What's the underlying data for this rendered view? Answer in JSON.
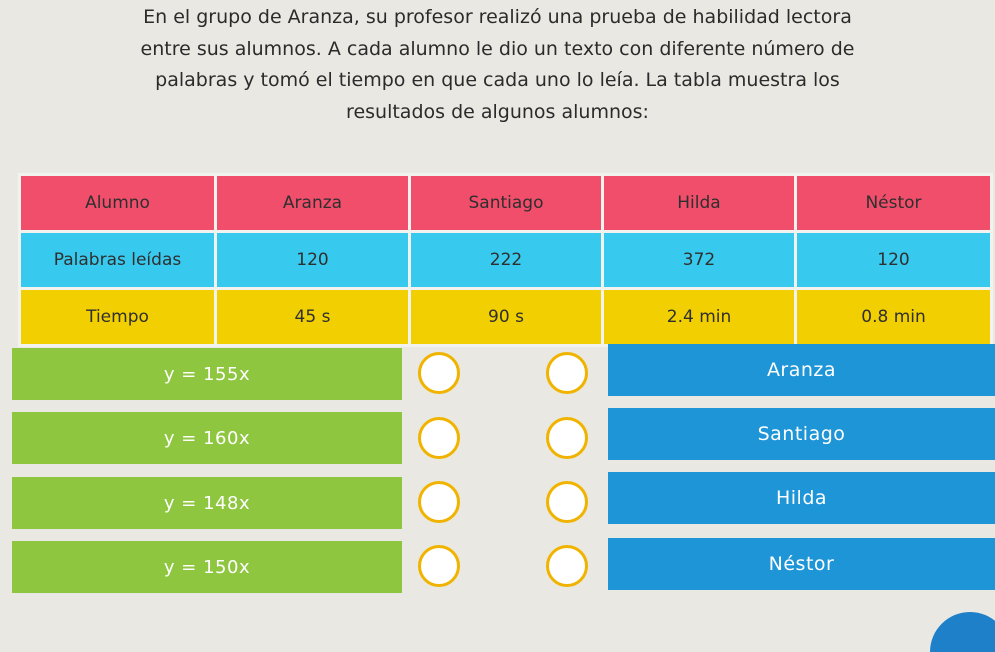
{
  "prompt": {
    "lines": [
      "En el grupo de Aranza, su profesor realizó una prueba de habilidad lectora",
      "entre sus alumnos. A cada alumno le dio un texto con diferente número de",
      "palabras y tomó el tiempo en que cada uno lo leía. La tabla muestra los",
      "resultados de algunos alumnos:"
    ]
  },
  "table": {
    "header": [
      "Alumno",
      "Aranza",
      "Santiago",
      "Hilda",
      "Néstor"
    ],
    "words": [
      "Palabras leídas",
      "120",
      "222",
      "372",
      "120"
    ],
    "time": [
      "Tiempo",
      "45 s",
      "90 s",
      "2.4 min",
      "0.8 min"
    ]
  },
  "equations": [
    "y = 155x",
    "y = 160x",
    "y = 148x",
    "y = 150x"
  ],
  "students": [
    "Aranza",
    "Santiago",
    "Hilda",
    "Néstor"
  ],
  "colors": {
    "header_row": "#f04e6b",
    "words_row": "#38c9ee",
    "time_row": "#f1cf00",
    "equation_box": "#8ec63f",
    "student_box": "#1e95d6",
    "circle_border": "#f0b400"
  }
}
